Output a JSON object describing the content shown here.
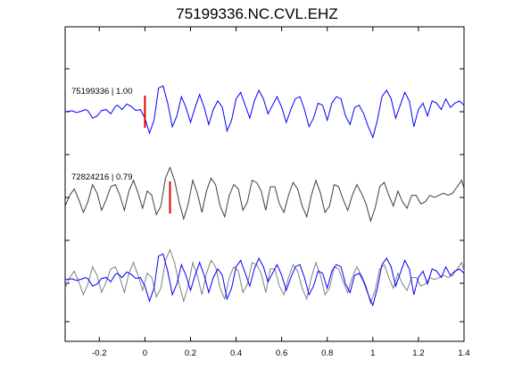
{
  "chart_data": {
    "type": "line",
    "title": "75199336.NC.CVL.EHZ",
    "xlim": [
      -0.35,
      1.4
    ],
    "x_ticks": [
      "-0.2",
      "0",
      "0.2",
      "0.4",
      "0.6",
      "0.8",
      "1",
      "1.2",
      "1.4"
    ],
    "x_tick_values": [
      -0.2,
      0,
      0.2,
      0.4,
      0.6,
      0.8,
      1.0,
      1.2,
      1.4
    ],
    "grid": false,
    "traces": [
      {
        "label": "75199336 | 1.00",
        "color": "#0000ff",
        "baseline": 0,
        "pick_time": 0.0,
        "x": [
          -0.35,
          -0.32,
          -0.3,
          -0.28,
          -0.26,
          -0.25,
          -0.23,
          -0.21,
          -0.19,
          -0.17,
          -0.15,
          -0.13,
          -0.12,
          -0.1,
          -0.08,
          -0.06,
          -0.04,
          -0.02,
          0,
          0.02,
          0.04,
          0.06,
          0.08,
          0.1,
          0.12,
          0.14,
          0.16,
          0.18,
          0.2,
          0.22,
          0.24,
          0.26,
          0.28,
          0.3,
          0.32,
          0.34,
          0.36,
          0.38,
          0.4,
          0.42,
          0.44,
          0.46,
          0.48,
          0.5,
          0.52,
          0.54,
          0.56,
          0.58,
          0.6,
          0.62,
          0.64,
          0.66,
          0.68,
          0.7,
          0.72,
          0.74,
          0.76,
          0.78,
          0.8,
          0.82,
          0.84,
          0.86,
          0.88,
          0.9,
          0.92,
          0.94,
          0.96,
          0.98,
          1.0,
          1.02,
          1.04,
          1.06,
          1.08,
          1.1,
          1.12,
          1.14,
          1.16,
          1.18,
          1.2,
          1.22,
          1.24,
          1.26,
          1.28,
          1.3,
          1.32,
          1.34,
          1.36,
          1.38,
          1.4
        ],
        "y": [
          0,
          0.02,
          -0.02,
          0.01,
          0.05,
          0.02,
          -0.15,
          -0.1,
          0.03,
          0.05,
          -0.05,
          0.12,
          0.15,
          0.05,
          0.18,
          0.12,
          0.03,
          0.05,
          -0.15,
          -0.5,
          -0.2,
          0.55,
          0.6,
          0.2,
          -0.35,
          -0.1,
          0.35,
          0.1,
          -0.25,
          0.1,
          0.4,
          0.1,
          -0.3,
          0.05,
          0.25,
          0.1,
          -0.45,
          -0.2,
          0.3,
          0.45,
          0.15,
          -0.15,
          0.25,
          0.5,
          0.3,
          -0.05,
          0.15,
          0.35,
          0.1,
          -0.25,
          0.05,
          0.3,
          0.35,
          0.05,
          -0.35,
          -0.15,
          0.2,
          0.15,
          -0.2,
          0.2,
          0.35,
          0.3,
          -0.1,
          -0.3,
          0.1,
          0.15,
          -0.05,
          -0.35,
          -0.6,
          -0.2,
          0.35,
          0.5,
          0.3,
          -0.15,
          0.15,
          0.45,
          0.25,
          -0.35,
          0.05,
          0.2,
          -0.1,
          0.25,
          0.2,
          0.05,
          0.3,
          0.1,
          0.2,
          0.25,
          0.15
        ]
      },
      {
        "label": "72824216 | 0.79",
        "color": "#404040",
        "baseline": 0,
        "pick_time": 0.11,
        "x": [
          -0.35,
          -0.33,
          -0.31,
          -0.29,
          -0.27,
          -0.25,
          -0.23,
          -0.21,
          -0.19,
          -0.17,
          -0.15,
          -0.13,
          -0.11,
          -0.09,
          -0.07,
          -0.05,
          -0.03,
          -0.01,
          0.01,
          0.03,
          0.05,
          0.07,
          0.09,
          0.11,
          0.13,
          0.15,
          0.17,
          0.19,
          0.21,
          0.23,
          0.25,
          0.27,
          0.29,
          0.31,
          0.33,
          0.35,
          0.37,
          0.39,
          0.41,
          0.43,
          0.45,
          0.47,
          0.49,
          0.51,
          0.53,
          0.55,
          0.57,
          0.59,
          0.61,
          0.63,
          0.65,
          0.67,
          0.69,
          0.71,
          0.73,
          0.75,
          0.77,
          0.79,
          0.81,
          0.83,
          0.85,
          0.87,
          0.89,
          0.91,
          0.93,
          0.95,
          0.97,
          0.99,
          1.01,
          1.03,
          1.05,
          1.07,
          1.09,
          1.11,
          1.13,
          1.15,
          1.17,
          1.19,
          1.21,
          1.23,
          1.25,
          1.27,
          1.29,
          1.31,
          1.33,
          1.35,
          1.37,
          1.39,
          1.4
        ],
        "y": [
          -0.2,
          0.05,
          0.2,
          -0.05,
          -0.35,
          -0.1,
          0.3,
          0.1,
          -0.3,
          -0.05,
          0.25,
          0.3,
          0.05,
          -0.3,
          0.15,
          0.4,
          0.1,
          -0.25,
          0.15,
          0.05,
          -0.4,
          -0.2,
          0.45,
          0.7,
          0.4,
          -0.1,
          -0.5,
          -0.15,
          0.4,
          0.1,
          -0.35,
          0.15,
          0.45,
          0.3,
          -0.2,
          -0.45,
          0.05,
          0.3,
          0.2,
          -0.3,
          -0.1,
          0.4,
          0.35,
          0.15,
          -0.3,
          0.25,
          0.25,
          -0.15,
          -0.35,
          0.05,
          0.35,
          0.2,
          -0.2,
          -0.45,
          0.05,
          0.4,
          0.1,
          -0.35,
          -0.2,
          0.3,
          0.25,
          -0.05,
          -0.3,
          0.05,
          0.3,
          0.1,
          -0.15,
          -0.55,
          -0.25,
          0.25,
          0.35,
          0.05,
          -0.2,
          0.15,
          -0.1,
          -0.25,
          0.05,
          0.05,
          -0.15,
          -0.1,
          0.05,
          0.0,
          0.05,
          0.1,
          0.05,
          0.1,
          0.25,
          0.4,
          0.2
        ]
      }
    ]
  }
}
